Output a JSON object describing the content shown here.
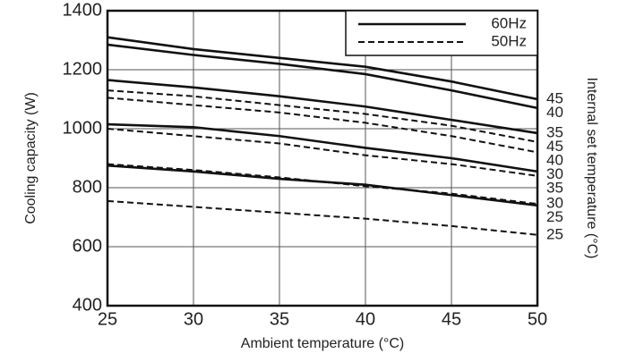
{
  "chart_data": {
    "type": "line",
    "x_label": "Ambient temperature (°C)",
    "y_label": "Cooling capacity (W)",
    "y2_label": "Internal set temperature (°C)",
    "x": [
      25,
      30,
      35,
      40,
      45,
      50
    ],
    "xlim": [
      25,
      50
    ],
    "xticks": [
      25,
      30,
      35,
      40,
      45,
      50
    ],
    "ylim": [
      400,
      1400
    ],
    "yticks": [
      400,
      600,
      800,
      1000,
      1200,
      1400
    ],
    "grid": true,
    "color": "#111111",
    "legend": [
      {
        "label": "60Hz",
        "dashed": false
      },
      {
        "label": "50Hz",
        "dashed": true
      }
    ],
    "series": [
      {
        "name": "45",
        "dashed": false,
        "values": [
          1310,
          1270,
          1240,
          1210,
          1160,
          1100
        ]
      },
      {
        "name": "40",
        "dashed": false,
        "values": [
          1285,
          1250,
          1220,
          1185,
          1130,
          1070
        ]
      },
      {
        "name": "35",
        "dashed": false,
        "values": [
          1165,
          1140,
          1110,
          1075,
          1030,
          985
        ]
      },
      {
        "name": "45",
        "dashed": true,
        "values": [
          1130,
          1110,
          1080,
          1050,
          1010,
          955
        ]
      },
      {
        "name": "40",
        "dashed": true,
        "values": [
          1105,
          1080,
          1055,
          1020,
          975,
          920
        ]
      },
      {
        "name": "30",
        "dashed": false,
        "values": [
          1015,
          1005,
          975,
          935,
          900,
          855
        ]
      },
      {
        "name": "35",
        "dashed": true,
        "values": [
          1000,
          975,
          950,
          910,
          880,
          840
        ]
      },
      {
        "name": "30",
        "dashed": true,
        "values": [
          880,
          860,
          835,
          805,
          780,
          745
        ]
      },
      {
        "name": "25",
        "dashed": false,
        "values": [
          875,
          855,
          830,
          810,
          775,
          740
        ]
      },
      {
        "name": "25",
        "dashed": true,
        "values": [
          755,
          735,
          715,
          695,
          670,
          640
        ]
      }
    ]
  }
}
